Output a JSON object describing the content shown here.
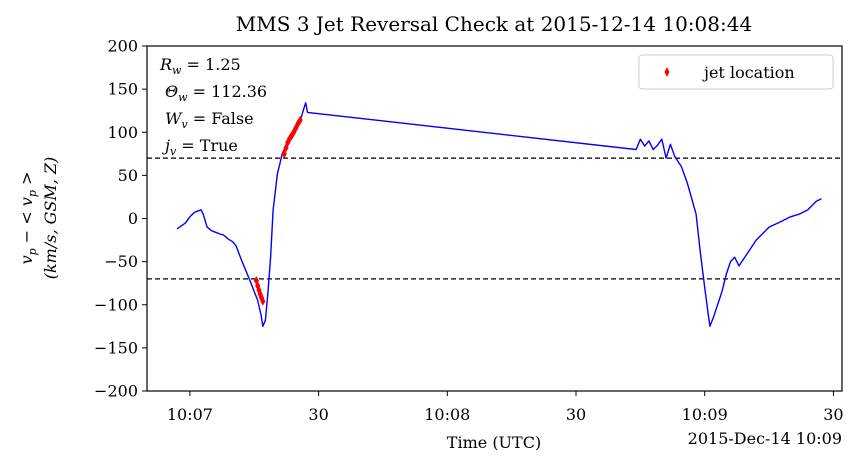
{
  "chart_data": {
    "type": "line",
    "title": "MMS 3 Jet Reversal Check at 2015-12-14 10:08:44",
    "xlabel": "Time (UTC)",
    "x_offset_label": "2015-Dec-14 10:09",
    "ylabel_line1": "$v_p - < v_p >$",
    "ylabel_line2": "$(km/s, GSM, Z)$",
    "ylabel_line1_text": "v_p − < v_p >",
    "ylabel_line2_text": "(km/s, GSM, Z)",
    "xlim": [
      "10:06:50",
      "10:09:32"
    ],
    "ylim": [
      -200,
      200
    ],
    "xticks": [
      {
        "t": "10:07:00",
        "label": "10:07"
      },
      {
        "t": "10:07:30",
        "label": "30"
      },
      {
        "t": "10:08:00",
        "label": "10:08"
      },
      {
        "t": "10:08:30",
        "label": "30"
      },
      {
        "t": "10:09:00",
        "label": "10:09"
      },
      {
        "t": "10:09:30",
        "label": "30"
      }
    ],
    "yticks": [
      -200,
      -150,
      -100,
      -50,
      0,
      50,
      100,
      150,
      200
    ],
    "threshold_lines": [
      70,
      -70
    ],
    "annotations": [
      "R_w = 1.25",
      " Θ_w = 112.36",
      " W_v = False",
      " j_v = True"
    ],
    "legend": {
      "label": "jet location",
      "placement": "upper right",
      "marker": "diamond",
      "color": "#ff0000"
    },
    "series": [
      {
        "color": "#0000ff",
        "points": [
          [
            "10:06:57",
            -12
          ],
          [
            "10:06:59",
            -5
          ],
          [
            "10:07:00",
            2
          ],
          [
            "10:07:01",
            7
          ],
          [
            "10:07:02",
            9
          ],
          [
            "10:07:02.6",
            10
          ],
          [
            "10:07:03.1",
            5
          ],
          [
            "10:07:04",
            -10
          ],
          [
            "10:07:05",
            -14
          ],
          [
            "10:07:06",
            -16
          ],
          [
            "10:07:07",
            -18
          ],
          [
            "10:07:07.8",
            -19
          ],
          [
            "10:07:09",
            -24
          ],
          [
            "10:07:10",
            -27
          ],
          [
            "10:07:10.8",
            -32
          ],
          [
            "10:07:12",
            -48
          ],
          [
            "10:07:13",
            -60
          ],
          [
            "10:07:14",
            -72
          ],
          [
            "10:07:15",
            -85
          ],
          [
            "10:07:15.8",
            -95
          ],
          [
            "10:07:16.6",
            -112
          ],
          [
            "10:07:17",
            -125
          ],
          [
            "10:07:17.6",
            -118
          ],
          [
            "10:07:18.2",
            -85
          ],
          [
            "10:07:18.8",
            -45
          ],
          [
            "10:07:19.4",
            10
          ],
          [
            "10:07:20",
            35
          ],
          [
            "10:07:20.4",
            52
          ],
          [
            "10:07:20.9",
            62
          ],
          [
            "10:07:21.5",
            75
          ],
          [
            "10:07:22.5",
            85
          ],
          [
            "10:07:23.5",
            95
          ],
          [
            "10:07:24.5",
            105
          ],
          [
            "10:07:25.2",
            110
          ],
          [
            "10:07:26",
            118
          ],
          [
            "10:07:26.6",
            128
          ],
          [
            "10:07:27",
            134
          ],
          [
            "10:07:27.4",
            123
          ],
          [
            "10:08:44",
            80
          ],
          [
            "10:08:45",
            92
          ],
          [
            "10:08:46",
            84
          ],
          [
            "10:08:47",
            90
          ],
          [
            "10:08:48",
            80
          ],
          [
            "10:08:49",
            85
          ],
          [
            "10:08:50",
            92
          ],
          [
            "10:08:51",
            70
          ],
          [
            "10:08:52",
            86
          ],
          [
            "10:08:53",
            72
          ],
          [
            "10:08:54.6",
            60
          ],
          [
            "10:08:56",
            40
          ],
          [
            "10:08:58",
            5
          ],
          [
            "10:08:59",
            -40
          ],
          [
            "10:09:00",
            -80
          ],
          [
            "10:09:00.8",
            -110
          ],
          [
            "10:09:01.2",
            -125
          ],
          [
            "10:09:02",
            -115
          ],
          [
            "10:09:03",
            -100
          ],
          [
            "10:09:04",
            -85
          ],
          [
            "10:09:05",
            -65
          ],
          [
            "10:09:06",
            -50
          ],
          [
            "10:09:07",
            -45
          ],
          [
            "10:09:08",
            -55
          ],
          [
            "10:09:10",
            -40
          ],
          [
            "10:09:12",
            -25
          ],
          [
            "10:09:15",
            -10
          ],
          [
            "10:09:18",
            -3
          ],
          [
            "10:09:20",
            2
          ],
          [
            "10:09:22",
            5
          ],
          [
            "10:09:24",
            10
          ],
          [
            "10:09:26",
            20
          ],
          [
            "10:09:27.2",
            23
          ]
        ]
      }
    ],
    "jet_locations": [
      [
        "10:07:15.5",
        -72
      ],
      [
        "10:07:15.8",
        -78
      ],
      [
        "10:07:16.1",
        -83
      ],
      [
        "10:07:16.4",
        -88
      ],
      [
        "10:07:16.7",
        -92
      ],
      [
        "10:07:17",
        -96
      ],
      [
        "10:07:22",
        75
      ],
      [
        "10:07:22.4",
        82
      ],
      [
        "10:07:22.8",
        88
      ],
      [
        "10:07:23.2",
        92
      ],
      [
        "10:07:23.7",
        96
      ],
      [
        "10:07:24.2",
        100
      ],
      [
        "10:07:24.7",
        105
      ],
      [
        "10:07:25.2",
        110
      ],
      [
        "10:07:25.7",
        114
      ]
    ]
  }
}
